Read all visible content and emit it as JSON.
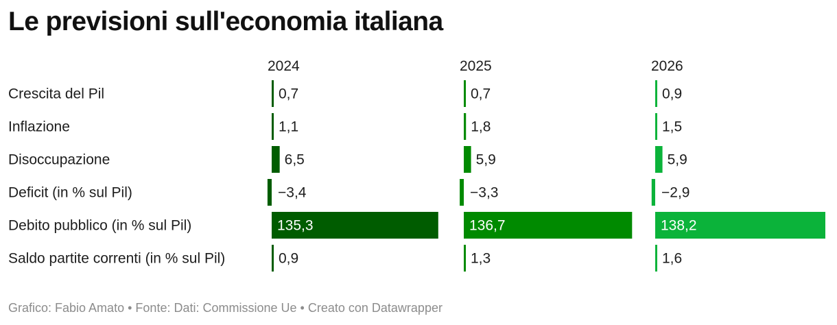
{
  "title": "Le previsioni sull'economia italiana",
  "footer": {
    "author": "Grafico: Fabio Amato",
    "source": "Fonte: Dati: Commissione Ue",
    "tool": "Creato con Datawrapper",
    "separator": "•"
  },
  "chart_data": {
    "type": "bar",
    "title": "Le previsioni sull'economia italiana",
    "layout": "small-multiples-horizontal",
    "categories": [
      "Crescita del Pil",
      "Inflazione",
      "Disoccupazione",
      "Deficit (in % sul Pil)",
      "Debito pubblico (in % sul Pil)",
      "Saldo partite correnti (in % sul Pil)"
    ],
    "series": [
      {
        "name": "2024",
        "color": "#005c00",
        "values": [
          0.7,
          1.1,
          6.5,
          -3.4,
          135.3,
          0.9
        ],
        "labels": [
          "0,7",
          "1,1",
          "6,5",
          "−3,4",
          "135,3",
          "0,9"
        ]
      },
      {
        "name": "2025",
        "color": "#008a00",
        "values": [
          0.7,
          1.8,
          5.9,
          -3.3,
          136.7,
          1.3
        ],
        "labels": [
          "0,7",
          "1,8",
          "5,9",
          "−3,3",
          "136,7",
          "1,3"
        ]
      },
      {
        "name": "2026",
        "color": "#0bb33a",
        "values": [
          0.9,
          1.5,
          5.9,
          -2.9,
          138.2,
          1.6
        ],
        "labels": [
          "0,9",
          "1,5",
          "5,9",
          "−2,9",
          "138,2",
          "1,6"
        ]
      }
    ],
    "xlim": [
      -3.4,
      138.2
    ],
    "grid": false
  }
}
